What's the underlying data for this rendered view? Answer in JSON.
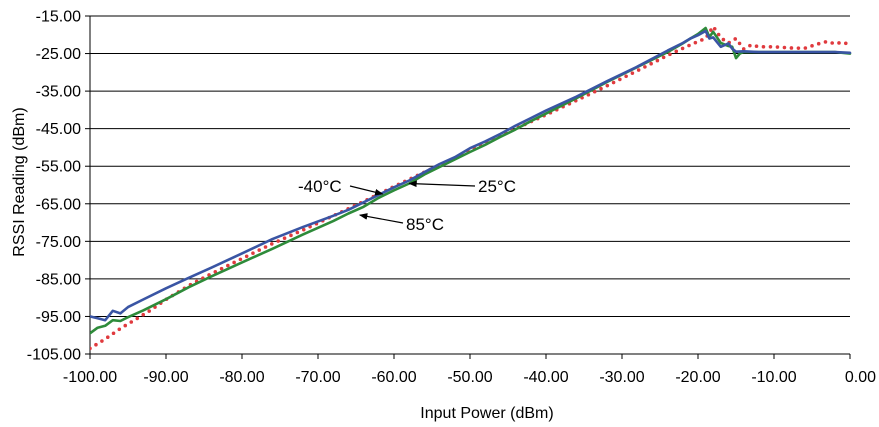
{
  "chart_data": {
    "type": "line",
    "title": "",
    "xlabel": "Input Power (dBm)",
    "ylabel": "RSSI Reading (dBm)",
    "xlim": [
      -100,
      0
    ],
    "ylim": [
      -105,
      -15
    ],
    "x_ticks": [
      -100,
      -90,
      -80,
      -70,
      -60,
      -50,
      -40,
      -30,
      -20,
      -10,
      0
    ],
    "y_ticks": [
      -15,
      -25,
      -35,
      -45,
      -55,
      -65,
      -75,
      -85,
      -95,
      -105
    ],
    "x_tick_labels": [
      "-100.00",
      "-90.00",
      "-80.00",
      "-70.00",
      "-60.00",
      "-50.00",
      "-40.00",
      "-30.00",
      "-20.00",
      "-10.00",
      "0.00"
    ],
    "y_tick_labels": [
      "-15.00",
      "-25.00",
      "-35.00",
      "-45.00",
      "-55.00",
      "-65.00",
      "-75.00",
      "-85.00",
      "-95.00",
      "-105.00"
    ],
    "grid": "horizontal",
    "series": [
      {
        "name": "-40°C",
        "color": "#3a55a4",
        "style": "solid",
        "x": [
          -100,
          -99,
          -98,
          -97,
          -96,
          -95,
          -93,
          -90,
          -87,
          -84,
          -80,
          -76,
          -72,
          -68,
          -66,
          -64,
          -62,
          -60,
          -58,
          -56,
          -54,
          -52,
          -50,
          -48,
          -46,
          -44,
          -42,
          -40,
          -36,
          -32,
          -28,
          -24,
          -22,
          -21,
          -20,
          -19,
          -18.5,
          -18,
          -17,
          -16,
          -15.5,
          -15,
          -14,
          -12,
          -10,
          -6,
          -2,
          0
        ],
        "y": [
          -95,
          -95.5,
          -96,
          -93.5,
          -94.2,
          -92.5,
          -90.5,
          -87.5,
          -84.7,
          -82,
          -78.2,
          -74.4,
          -71.2,
          -68.2,
          -66.6,
          -64.6,
          -62.6,
          -60.6,
          -58.8,
          -56.6,
          -54.4,
          -52.6,
          -50.2,
          -48.4,
          -46.4,
          -44.2,
          -42.2,
          -40.2,
          -36.5,
          -32.4,
          -28.5,
          -24.2,
          -22.2,
          -21,
          -20.1,
          -19,
          -21,
          -20.7,
          -23.2,
          -22.3,
          -23.7,
          -24.5,
          -24.4,
          -24.6,
          -24.6,
          -24.6,
          -24.6,
          -24.8
        ]
      },
      {
        "name": "25°C",
        "color": "#2e8b3a",
        "style": "solid",
        "x": [
          -100,
          -99,
          -98,
          -97,
          -96,
          -95,
          -93,
          -90,
          -87,
          -84,
          -80,
          -76,
          -72,
          -68,
          -66,
          -64,
          -62,
          -60,
          -58,
          -56,
          -54,
          -52,
          -50,
          -48,
          -46,
          -44,
          -42,
          -40,
          -36,
          -32,
          -28,
          -24,
          -22,
          -21,
          -20,
          -19,
          -18.5,
          -18,
          -17,
          -16,
          -15.5,
          -15,
          -14.5,
          -14,
          -12,
          -10,
          -6,
          -2,
          0
        ],
        "y": [
          -99.5,
          -98,
          -97.5,
          -96,
          -96.2,
          -95.2,
          -93.4,
          -90.4,
          -87.2,
          -84.3,
          -80.6,
          -77,
          -73.2,
          -69.6,
          -67.6,
          -65.8,
          -63.4,
          -61.4,
          -59.6,
          -57.2,
          -55.2,
          -53.2,
          -51.2,
          -49.3,
          -47.2,
          -45.2,
          -43,
          -41,
          -36.9,
          -32.6,
          -28.6,
          -24.6,
          -22.3,
          -21,
          -19.8,
          -18.2,
          -20.6,
          -19.2,
          -22.2,
          -23,
          -23.2,
          -26.2,
          -25,
          -24.6,
          -24.6,
          -24.6,
          -24.6,
          -24.6,
          -25
        ]
      },
      {
        "name": "85°C",
        "color": "#e03a3e",
        "style": "dotted",
        "x": [
          -100,
          -98,
          -96,
          -94,
          -92,
          -90,
          -87,
          -84,
          -80,
          -76,
          -72,
          -68,
          -64,
          -60,
          -56,
          -52,
          -48,
          -44,
          -40,
          -36,
          -32,
          -28,
          -24,
          -22,
          -20,
          -19,
          -18,
          -17,
          -16,
          -15,
          -14,
          -13,
          -12,
          -10,
          -8,
          -6,
          -4,
          -3,
          -2,
          -1,
          0
        ],
        "y": [
          -103.5,
          -101,
          -98.2,
          -95.8,
          -93.3,
          -90.5,
          -86.8,
          -83.6,
          -79.6,
          -75.6,
          -72,
          -68.2,
          -64.4,
          -60.4,
          -56.6,
          -52.8,
          -48.8,
          -45,
          -41.3,
          -37.5,
          -33.6,
          -29.6,
          -25.5,
          -23.6,
          -21.8,
          -21,
          -17.8,
          -20.8,
          -22.2,
          -21,
          -23.8,
          -22.7,
          -23.2,
          -23.2,
          -23.5,
          -23.6,
          -22.3,
          -21.8,
          -22.4,
          -22,
          -22.6
        ]
      }
    ],
    "annotations": [
      {
        "text": "-40°C",
        "target_x": -61.5,
        "target_y": -62.4
      },
      {
        "text": "25°C",
        "target_x": -58,
        "target_y": -59.6
      },
      {
        "text": "85°C",
        "target_x": -64.5,
        "target_y": -68
      }
    ]
  }
}
